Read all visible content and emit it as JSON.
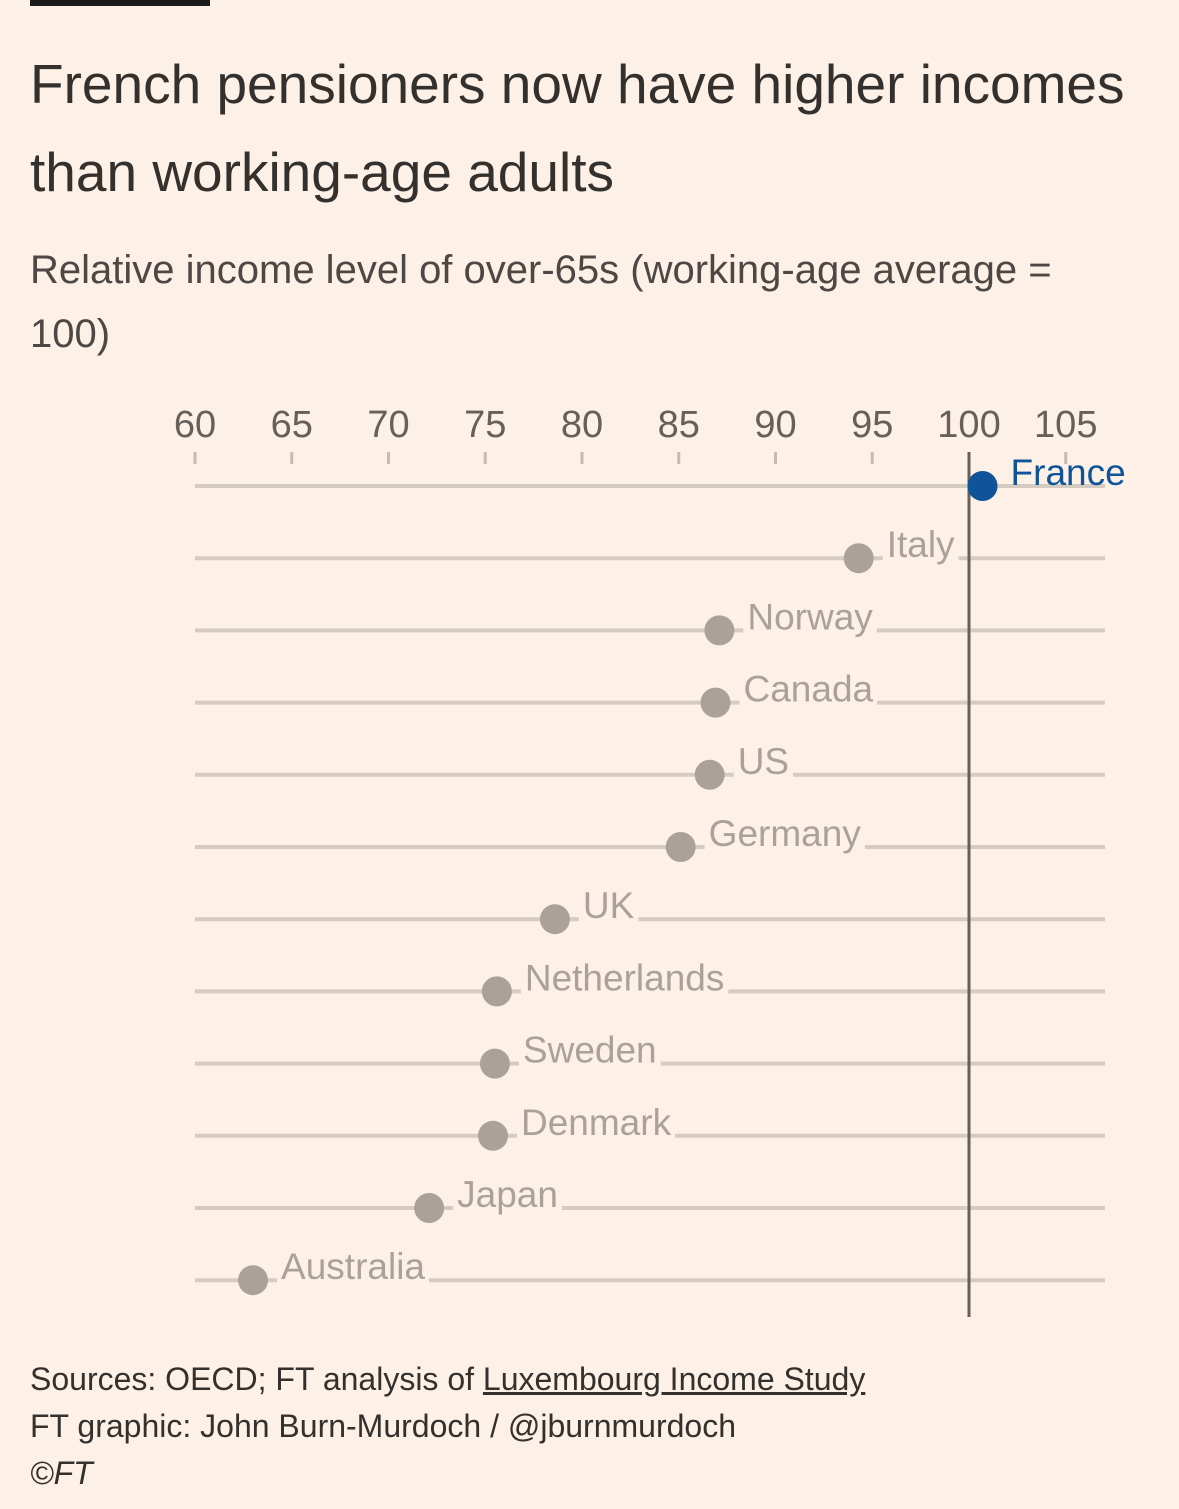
{
  "title": "French pensioners now have higher incomes than working-age adults",
  "subtitle": "Relative income level of over-65s (working-age average = 100)",
  "chart_data": {
    "type": "dot",
    "ticks": [
      60,
      65,
      70,
      75,
      80,
      85,
      90,
      95,
      100,
      105
    ],
    "xlim": [
      60,
      107
    ],
    "reference_line": 100,
    "highlight": "France",
    "colors": {
      "highlight": "#0f5499",
      "default": "#aaa29a",
      "track": "#d6cbc0",
      "reference": "#66605c",
      "tick_text": "#66605c"
    },
    "points": [
      {
        "label": "France",
        "value": 100.7
      },
      {
        "label": "Italy",
        "value": 94.3
      },
      {
        "label": "Norway",
        "value": 87.1
      },
      {
        "label": "Canada",
        "value": 86.9
      },
      {
        "label": "US",
        "value": 86.6
      },
      {
        "label": "Germany",
        "value": 85.1
      },
      {
        "label": "UK",
        "value": 78.6
      },
      {
        "label": "Netherlands",
        "value": 75.6
      },
      {
        "label": "Sweden",
        "value": 75.5
      },
      {
        "label": "Denmark",
        "value": 75.4
      },
      {
        "label": "Japan",
        "value": 72.1
      },
      {
        "label": "Australia",
        "value": 63.0
      }
    ]
  },
  "footer": {
    "sources_prefix": "Sources: OECD; FT analysis of ",
    "sources_link": "Luxembourg Income Study",
    "credit": "FT graphic: John Burn-Murdoch / @jburnmurdoch",
    "copyright": "©FT"
  }
}
